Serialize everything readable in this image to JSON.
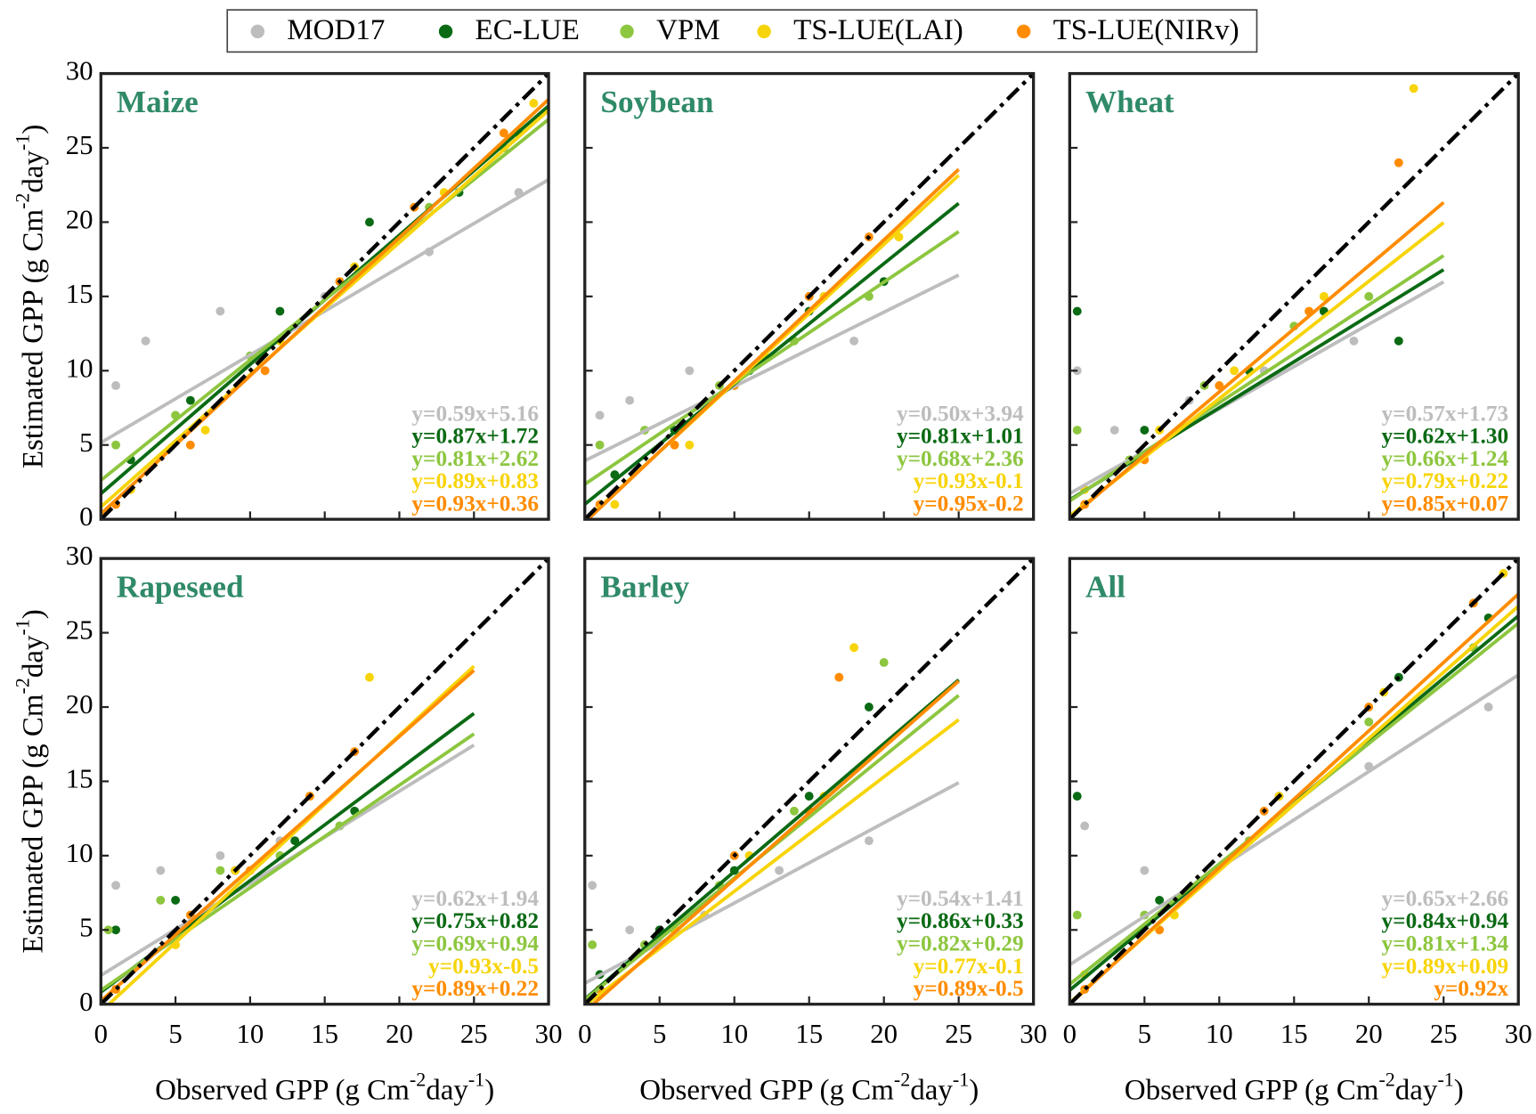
{
  "chart_data": {
    "type": "scatter",
    "series": [
      {
        "name": "MOD17",
        "color": "#bdbdbd"
      },
      {
        "name": "EC-LUE",
        "color": "#0b6a14"
      },
      {
        "name": "VPM",
        "color": "#8dc63f"
      },
      {
        "name": "TS-LUE(LAI)",
        "color": "#f7d40a"
      },
      {
        "name": "TS-LUE(NIRv)",
        "color": "#ff8c00"
      }
    ],
    "xlabel": [
      "Observed GPP (g Cm",
      "-2",
      "day",
      "-1",
      ")"
    ],
    "ylabel": [
      "Estimated GPP (g Cm",
      "-2",
      "day",
      "-1",
      ")"
    ],
    "xlim": [
      0,
      30
    ],
    "ylim": [
      0,
      30
    ],
    "xticks": [
      0,
      5,
      10,
      15,
      20,
      25,
      30
    ],
    "yticks": [
      0,
      5,
      10,
      15,
      20,
      25,
      30
    ],
    "panels": [
      {
        "title": "Maize",
        "fit_x": [
          0,
          30
        ],
        "groups": [
          {
            "fit_label": "y=0.59x+5.16",
            "slope": 0.59,
            "intercept": 5.16,
            "x": [
              1,
              3,
              8,
              15,
              22,
              28
            ],
            "y": [
              9,
              12,
              14,
              15,
              18,
              22
            ]
          },
          {
            "fit_label": "y=0.87x+1.72",
            "slope": 0.87,
            "intercept": 1.72,
            "x": [
              2,
              6,
              12,
              18,
              24,
              28
            ],
            "y": [
              4,
              8,
              14,
              20,
              22,
              26
            ]
          },
          {
            "fit_label": "y=0.81x+2.62",
            "slope": 0.81,
            "intercept": 2.62,
            "x": [
              1,
              5,
              10,
              16,
              22,
              27
            ],
            "y": [
              5,
              7,
              11,
              16,
              21,
              25
            ]
          },
          {
            "fit_label": "y=0.89x+0.83",
            "slope": 0.89,
            "intercept": 0.83,
            "x": [
              2,
              7,
              12,
              17,
              23,
              29
            ],
            "y": [
              2,
              6,
              12,
              17,
              22,
              28
            ]
          },
          {
            "fit_label": "y=0.93x+0.36",
            "slope": 0.93,
            "intercept": 0.36,
            "x": [
              1,
              6,
              11,
              16,
              21,
              27
            ],
            "y": [
              1,
              5,
              10,
              16,
              21,
              26
            ]
          }
        ]
      },
      {
        "title": "Soybean",
        "fit_x": [
          0,
          25
        ],
        "groups": [
          {
            "fit_label": "y=0.50x+3.94",
            "slope": 0.5,
            "intercept": 3.94,
            "x": [
              1,
              3,
              7,
              12,
              18
            ],
            "y": [
              7,
              8,
              10,
              11,
              12
            ]
          },
          {
            "fit_label": "y=0.81x+1.01",
            "slope": 0.81,
            "intercept": 1.01,
            "x": [
              2,
              6,
              11,
              15,
              20
            ],
            "y": [
              3,
              6,
              10,
              14,
              16
            ]
          },
          {
            "fit_label": "y=0.68x+2.36",
            "slope": 0.68,
            "intercept": 2.36,
            "x": [
              1,
              4,
              9,
              14,
              19
            ],
            "y": [
              5,
              6,
              9,
              12,
              15
            ]
          },
          {
            "fit_label": "y=0.93x-0.1",
            "slope": 0.93,
            "intercept": -0.1,
            "x": [
              2,
              7,
              12,
              16,
              21
            ],
            "y": [
              1,
              5,
              11,
              15,
              19
            ]
          },
          {
            "fit_label": "y=0.95x-0.2",
            "slope": 0.95,
            "intercept": -0.2,
            "x": [
              1,
              6,
              10,
              15,
              19
            ],
            "y": [
              1,
              5,
              9,
              15,
              19
            ]
          }
        ]
      },
      {
        "title": "Wheat",
        "fit_x": [
          0,
          25
        ],
        "groups": [
          {
            "fit_label": "y=0.57x+1.73",
            "slope": 0.57,
            "intercept": 1.73,
            "x": [
              0.5,
              3,
              8,
              13,
              19
            ],
            "y": [
              10,
              6,
              8,
              10,
              12
            ]
          },
          {
            "fit_label": "y=0.62x+1.30",
            "slope": 0.62,
            "intercept": 1.3,
            "x": [
              0.5,
              5,
              12,
              17,
              22
            ],
            "y": [
              14,
              6,
              10,
              14,
              12
            ]
          },
          {
            "fit_label": "y=0.66x+1.24",
            "slope": 0.66,
            "intercept": 1.24,
            "x": [
              0.5,
              4,
              9,
              15,
              20
            ],
            "y": [
              6,
              4,
              9,
              13,
              15
            ]
          },
          {
            "fit_label": "y=0.79x+0.22",
            "slope": 0.79,
            "intercept": 0.22,
            "x": [
              1,
              6,
              11,
              17,
              23
            ],
            "y": [
              2,
              6,
              10,
              15,
              29
            ]
          },
          {
            "fit_label": "y=0.85x+0.07",
            "slope": 0.85,
            "intercept": 0.07,
            "x": [
              1,
              5,
              10,
              16,
              22
            ],
            "y": [
              1,
              4,
              9,
              14,
              24
            ]
          }
        ]
      },
      {
        "title": "Rapeseed",
        "fit_x": [
          0,
          25
        ],
        "groups": [
          {
            "fit_label": "y=0.62x+1.94",
            "slope": 0.62,
            "intercept": 1.94,
            "x": [
              1,
              4,
              8,
              12,
              16
            ],
            "y": [
              8,
              9,
              10,
              11,
              12
            ]
          },
          {
            "fit_label": "y=0.75x+0.82",
            "slope": 0.75,
            "intercept": 0.82,
            "x": [
              1,
              5,
              9,
              13,
              17
            ],
            "y": [
              5,
              7,
              9,
              11,
              13
            ]
          },
          {
            "fit_label": "y=0.69x+0.94",
            "slope": 0.69,
            "intercept": 0.94,
            "x": [
              0.5,
              4,
              8,
              12,
              16
            ],
            "y": [
              5,
              7,
              9,
              10,
              12
            ]
          },
          {
            "fit_label": "y=0.93x-0.5",
            "slope": 0.93,
            "intercept": -0.5,
            "x": [
              1,
              5,
              9,
              14,
              18
            ],
            "y": [
              1,
              4,
              9,
              14,
              22
            ]
          },
          {
            "fit_label": "y=0.89x+0.22",
            "slope": 0.89,
            "intercept": 0.22,
            "x": [
              1,
              6,
              10,
              14,
              17
            ],
            "y": [
              1,
              6,
              9,
              14,
              17
            ]
          }
        ]
      },
      {
        "title": "Barley",
        "fit_x": [
          0,
          25
        ],
        "groups": [
          {
            "fit_label": "y=0.54x+1.41",
            "slope": 0.54,
            "intercept": 1.41,
            "x": [
              0.5,
              3,
              8,
              13,
              19
            ],
            "y": [
              8,
              5,
              6,
              9,
              11
            ]
          },
          {
            "fit_label": "y=0.86x+0.33",
            "slope": 0.86,
            "intercept": 0.33,
            "x": [
              1,
              5,
              10,
              15,
              19
            ],
            "y": [
              2,
              5,
              9,
              14,
              20
            ]
          },
          {
            "fit_label": "y=0.82x+0.29",
            "slope": 0.82,
            "intercept": 0.29,
            "x": [
              0.5,
              4,
              9,
              14,
              20
            ],
            "y": [
              4,
              4,
              8,
              13,
              23
            ]
          },
          {
            "fit_label": "y=0.77x-0.1",
            "slope": 0.77,
            "intercept": -0.1,
            "x": [
              1,
              6,
              11,
              16,
              18
            ],
            "y": [
              1,
              5,
              10,
              14,
              24
            ]
          },
          {
            "fit_label": "y=0.89x-0.5",
            "slope": 0.89,
            "intercept": -0.5,
            "x": [
              1,
              5,
              10,
              15,
              17
            ],
            "y": [
              1,
              4,
              10,
              13,
              22
            ]
          }
        ]
      },
      {
        "title": "All",
        "fit_x": [
          0,
          30
        ],
        "groups": [
          {
            "fit_label": "y=0.65x+2.66",
            "slope": 0.65,
            "intercept": 2.66,
            "x": [
              1,
              5,
              12,
              20,
              28
            ],
            "y": [
              12,
              9,
              11,
              16,
              20
            ]
          },
          {
            "fit_label": "y=0.84x+0.94",
            "slope": 0.84,
            "intercept": 0.94,
            "x": [
              0.5,
              6,
              14,
              22,
              28
            ],
            "y": [
              14,
              7,
              14,
              22,
              26
            ]
          },
          {
            "fit_label": "y=0.81x+1.34",
            "slope": 0.81,
            "intercept": 1.34,
            "x": [
              0.5,
              5,
              12,
              20,
              27
            ],
            "y": [
              6,
              6,
              11,
              19,
              24
            ]
          },
          {
            "fit_label": "y=0.89x+0.09",
            "slope": 0.89,
            "intercept": 0.09,
            "x": [
              1,
              7,
              14,
              21,
              29
            ],
            "y": [
              2,
              6,
              14,
              21,
              29
            ]
          },
          {
            "fit_label": "y=0.92x",
            "slope": 0.92,
            "intercept": 0,
            "x": [
              1,
              6,
              13,
              20,
              27
            ],
            "y": [
              1,
              5,
              13,
              20,
              27
            ]
          }
        ]
      }
    ]
  }
}
